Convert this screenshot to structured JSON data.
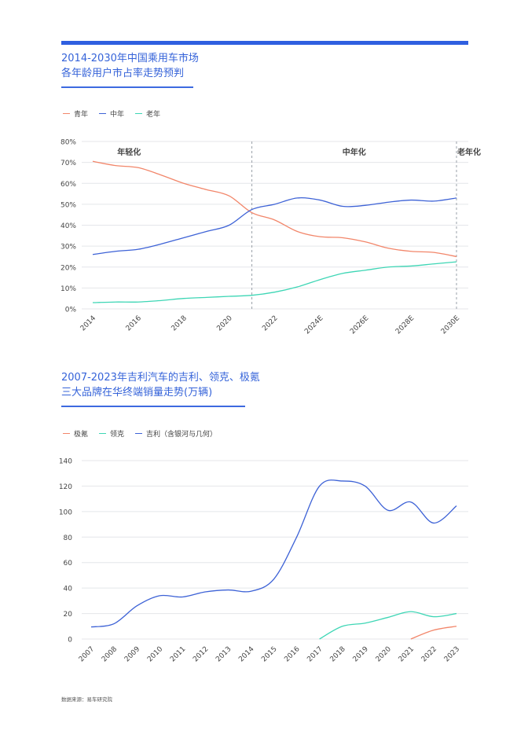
{
  "chart1": {
    "title_line1": "2014-2030年中国乘用车市场",
    "title_line2": "各年龄用户市占率走势预判",
    "legend": [
      "青年",
      "中年",
      "老年"
    ],
    "colors": {
      "青年": "#f2866a",
      "中年": "#3d62d6",
      "老年": "#3ed6b5"
    },
    "region_labels": [
      "年轻化",
      "中年化",
      "老年化"
    ],
    "x_labels": [
      "2014",
      "2016",
      "2018",
      "2020",
      "2022",
      "2024E",
      "2026E",
      "2028E",
      "2030E"
    ],
    "y_labels": [
      "0%",
      "10%",
      "20%",
      "30%",
      "40%",
      "50%",
      "60%",
      "70%",
      "80%"
    ]
  },
  "chart2": {
    "title_line1": "2007-2023年吉利汽车的吉利、领克、极氪",
    "title_line2": "三大品牌在华终端销量走势(万辆)",
    "legend": [
      "极氪",
      "领克",
      "吉利（含银河与几何）"
    ],
    "colors": {
      "极氪": "#f2866a",
      "领克": "#3ed6b5",
      "吉利": "#3d62d6"
    },
    "x_labels": [
      "2007",
      "2008",
      "2009",
      "2010",
      "2011",
      "2012",
      "2013",
      "2014",
      "2015",
      "2016",
      "2017",
      "2018",
      "2019",
      "2020",
      "2021",
      "2022",
      "2023"
    ],
    "y_labels": [
      "0",
      "20",
      "40",
      "60",
      "80",
      "100",
      "120",
      "140"
    ]
  },
  "chart_data": [
    {
      "type": "line",
      "title": "2014-2030年中国乘用车市场 各年龄用户市占率走势预判",
      "x": [
        2014,
        2015,
        2016,
        2017,
        2018,
        2019,
        2020,
        2021,
        2022,
        2023,
        2024,
        2025,
        2026,
        2027,
        2028,
        2029,
        2030
      ],
      "ylim": [
        0,
        80
      ],
      "y_unit": "%",
      "grid": true,
      "legend_position": "top-left",
      "regions": [
        {
          "label": "年轻化",
          "from": 2014,
          "to": 2021
        },
        {
          "label": "中年化",
          "from": 2021,
          "to": 2030
        },
        {
          "label": "老年化",
          "from": 2030,
          "to": 2030.5
        }
      ],
      "series": [
        {
          "name": "青年",
          "values": [
            70.5,
            68.5,
            67.5,
            64,
            60,
            57,
            54,
            46,
            42.5,
            37,
            34.5,
            34,
            32,
            29,
            27.5,
            27,
            25
          ]
        },
        {
          "name": "中年",
          "values": [
            26,
            27.5,
            28.5,
            31,
            34,
            37,
            40,
            47.5,
            50,
            53,
            52,
            49,
            49.5,
            51,
            52,
            51.5,
            53
          ]
        },
        {
          "name": "老年",
          "values": [
            3,
            3.3,
            3.3,
            4,
            5,
            5.5,
            6,
            6.5,
            8,
            10.5,
            14,
            17,
            18.5,
            20,
            20.5,
            21.5,
            22.5
          ]
        }
      ]
    },
    {
      "type": "line",
      "title": "2007-2023年吉利汽车的吉利、领克、极氪 三大品牌在华终端销量走势(万辆)",
      "x": [
        2007,
        2008,
        2009,
        2010,
        2011,
        2012,
        2013,
        2014,
        2015,
        2016,
        2017,
        2018,
        2019,
        2020,
        2021,
        2022,
        2023
      ],
      "ylim": [
        0,
        140
      ],
      "grid": true,
      "legend_position": "top-left",
      "series": [
        {
          "name": "吉利（含银河与几何）",
          "values": [
            9.5,
            12,
            26,
            34,
            33,
            37,
            38.5,
            37.5,
            47,
            80,
            120,
            124,
            120,
            101,
            107.5,
            91,
            104.5
          ]
        },
        {
          "name": "领克",
          "values": [
            null,
            null,
            null,
            null,
            null,
            null,
            null,
            null,
            null,
            null,
            0,
            10,
            12.5,
            17,
            21.5,
            17.5,
            20
          ]
        },
        {
          "name": "极氪",
          "values": [
            null,
            null,
            null,
            null,
            null,
            null,
            null,
            null,
            null,
            null,
            null,
            null,
            null,
            null,
            0,
            7,
            10
          ]
        }
      ]
    }
  ],
  "footer": "数据来源：易车研究院"
}
